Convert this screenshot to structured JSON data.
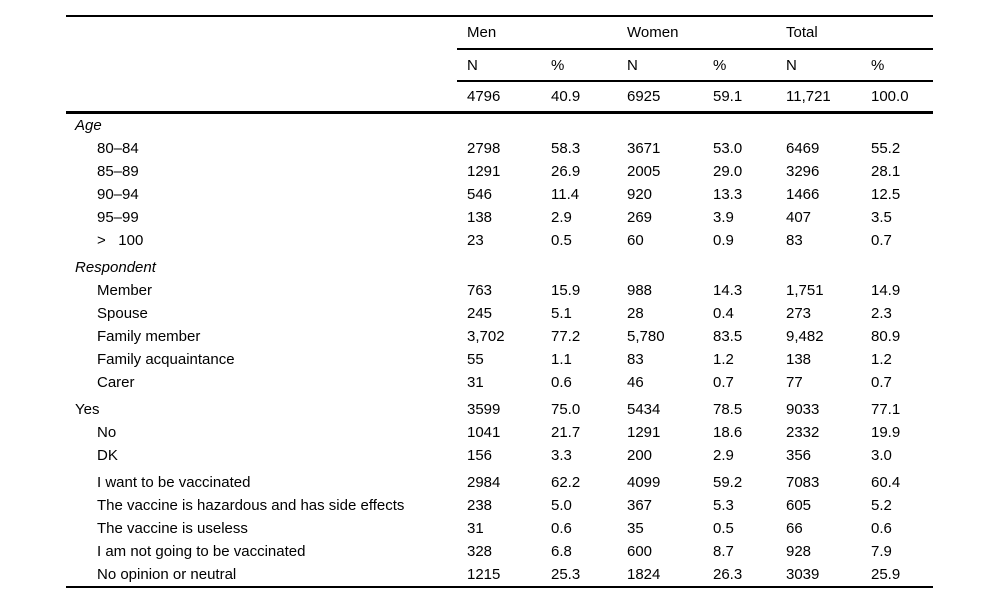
{
  "table": {
    "header": {
      "groups": [
        "Men",
        "Women",
        "Total"
      ],
      "cols": [
        "N",
        "%",
        "N",
        "%",
        "N",
        "%"
      ]
    },
    "totals": {
      "cells": [
        "4796",
        "40.9",
        "6925",
        "59.1",
        "11,721",
        "100.0"
      ]
    },
    "rows": [
      {
        "label": "Age",
        "type": "section",
        "cells": [
          "",
          "",
          "",
          "",
          "",
          ""
        ]
      },
      {
        "label": "80–84",
        "type": "item",
        "cells": [
          "2798",
          "58.3",
          "3671",
          "53.0",
          "6469",
          "55.2"
        ]
      },
      {
        "label": "85–89",
        "type": "item",
        "cells": [
          "1291",
          "26.9",
          "2005",
          "29.0",
          "3296",
          "28.1"
        ]
      },
      {
        "label": "90–94",
        "type": "item",
        "cells": [
          "546",
          "11.4",
          "920",
          "13.3",
          "1466",
          "12.5"
        ]
      },
      {
        "label": "95–99",
        "type": "item",
        "cells": [
          "138",
          "2.9",
          "269",
          "3.9",
          "407",
          "3.5"
        ]
      },
      {
        "label": ">   100",
        "type": "item",
        "cells": [
          "23",
          "0.5",
          "60",
          "0.9",
          "83",
          "0.7"
        ]
      },
      {
        "label": "Respondent",
        "type": "section",
        "cells": [
          "",
          "",
          "",
          "",
          "",
          ""
        ]
      },
      {
        "label": "Member",
        "type": "item",
        "cells": [
          "763",
          "15.9",
          "988",
          "14.3",
          "1,751",
          "14.9"
        ]
      },
      {
        "label": "Spouse",
        "type": "item",
        "cells": [
          "245",
          "5.1",
          "28",
          "0.4",
          "273",
          "2.3"
        ]
      },
      {
        "label": "Family member",
        "type": "item",
        "cells": [
          "3,702",
          "77.2",
          "5,780",
          "83.5",
          "9,482",
          "80.9"
        ]
      },
      {
        "label": "Family acquaintance",
        "type": "item",
        "cells": [
          "55",
          "1.1",
          "83",
          "1.2",
          "138",
          "1.2"
        ]
      },
      {
        "label": "Carer",
        "type": "item",
        "cells": [
          "31",
          "0.6",
          "46",
          "0.7",
          "77",
          "0.7"
        ]
      },
      {
        "label": "Yes",
        "type": "plain",
        "cells": [
          "3599",
          "75.0",
          "5434",
          "78.5",
          "9033",
          "77.1"
        ]
      },
      {
        "label": "No",
        "type": "item",
        "cells": [
          "1041",
          "21.7",
          "1291",
          "18.6",
          "2332",
          "19.9"
        ]
      },
      {
        "label": "DK",
        "type": "item",
        "cells": [
          "156",
          "3.3",
          "200",
          "2.9",
          "356",
          "3.0"
        ]
      },
      {
        "label": "I want to be vaccinated",
        "type": "item",
        "cells": [
          "2984",
          "62.2",
          "4099",
          "59.2",
          "7083",
          "60.4"
        ]
      },
      {
        "label": "The vaccine is hazardous and has side effects",
        "type": "item",
        "cells": [
          "238",
          "5.0",
          "367",
          "5.3",
          "605",
          "5.2"
        ]
      },
      {
        "label": "The vaccine is useless",
        "type": "item",
        "cells": [
          "31",
          "0.6",
          "35",
          "0.5",
          "66",
          "0.6"
        ]
      },
      {
        "label": "I am not going to be vaccinated",
        "type": "item",
        "cells": [
          "328",
          "6.8",
          "600",
          "8.7",
          "928",
          "7.9"
        ]
      },
      {
        "label": "No opinion or neutral",
        "type": "item",
        "cells": [
          "1215",
          "25.3",
          "1824",
          "26.3",
          "3039",
          "25.9"
        ]
      }
    ]
  }
}
